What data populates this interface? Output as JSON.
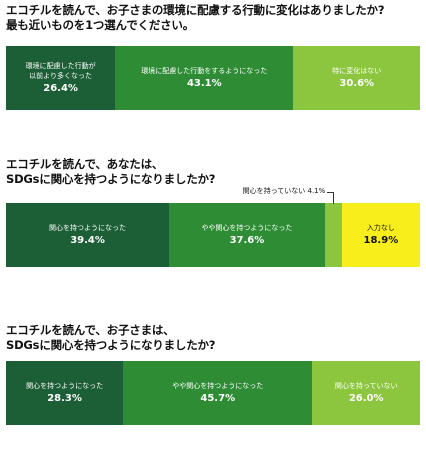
{
  "colors": {
    "dark_green": "#1c5e36",
    "mid_green": "#2e8d34",
    "light_green": "#8cc63f",
    "yellow": "#f8ee1b"
  },
  "chart_data": [
    {
      "type": "bar",
      "orientation": "horizontal-stacked",
      "title": "エコチルを読んで、お子さまの環境に配慮する行動に変化はありましたか?\n最も近いものを1つ選んでください。",
      "unit": "%",
      "series": [
        {
          "label": "環境に配慮した行動が\n以前より多くなった",
          "value": 26.4,
          "display": "26.4%",
          "color": "#1c5e36",
          "text_color": "#ffffff"
        },
        {
          "label": "環境に配慮した行動をするようになった",
          "value": 43.1,
          "display": "43.1%",
          "color": "#2e8d34",
          "text_color": "#ffffff"
        },
        {
          "label": "特に変化はない",
          "value": 30.6,
          "display": "30.6%",
          "color": "#8cc63f",
          "text_color": "#ffffff"
        }
      ]
    },
    {
      "type": "bar",
      "orientation": "horizontal-stacked",
      "title": "エコチルを読んで、あなたは、\nSDGsに関心を持つようになりましたか?",
      "unit": "%",
      "series": [
        {
          "label": "関心を持つようになった",
          "value": 39.4,
          "display": "39.4%",
          "color": "#1c5e36",
          "text_color": "#ffffff"
        },
        {
          "label": "やや関心を持つようになった",
          "value": 37.6,
          "display": "37.6%",
          "color": "#2e8d34",
          "text_color": "#ffffff"
        },
        {
          "label": "関心を持っていない",
          "value": 4.1,
          "display": "4.1%",
          "color": "#8cc63f",
          "text_color": "#ffffff",
          "callout": "関心を持っていない 4.1%"
        },
        {
          "label": "入力なし",
          "value": 18.9,
          "display": "18.9%",
          "color": "#f8ee1b",
          "text_color": "#111111"
        }
      ]
    },
    {
      "type": "bar",
      "orientation": "horizontal-stacked",
      "title": "エコチルを読んで、お子さまは、\nSDGsに関心を持つようになりましたか?",
      "unit": "%",
      "series": [
        {
          "label": "関心を持つようになった",
          "value": 28.3,
          "display": "28.3%",
          "color": "#1c5e36",
          "text_color": "#ffffff"
        },
        {
          "label": "やや関心を持つようになった",
          "value": 45.7,
          "display": "45.7%",
          "color": "#2e8d34",
          "text_color": "#ffffff"
        },
        {
          "label": "関心を持っていない",
          "value": 26.0,
          "display": "26.0%",
          "color": "#8cc63f",
          "text_color": "#ffffff"
        }
      ]
    }
  ]
}
